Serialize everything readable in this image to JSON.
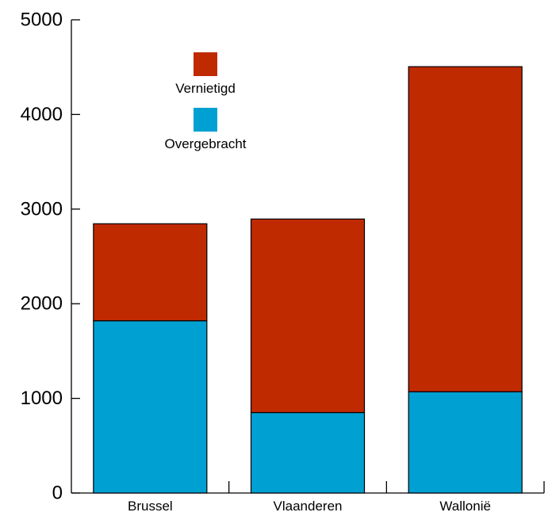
{
  "chart_data": {
    "type": "bar",
    "stacked": true,
    "categories": [
      "Brussel",
      "Vlaanderen",
      "Wallonië"
    ],
    "series": [
      {
        "name": "Overgebracht",
        "color": "#00A0D2",
        "values": [
          1820,
          850,
          1070
        ]
      },
      {
        "name": "Vernietigd",
        "color": "#C02A00",
        "values": [
          1025,
          2045,
          3435
        ]
      }
    ],
    "totals": [
      2845,
      2895,
      4505
    ],
    "y_ticks": [
      "0",
      "1000",
      "2000",
      "3000",
      "4000",
      "5000"
    ],
    "ylim": [
      0,
      5000
    ],
    "title": "",
    "xlabel": "",
    "ylabel": "",
    "grid": false,
    "legend_position": "top-left inside plot"
  }
}
